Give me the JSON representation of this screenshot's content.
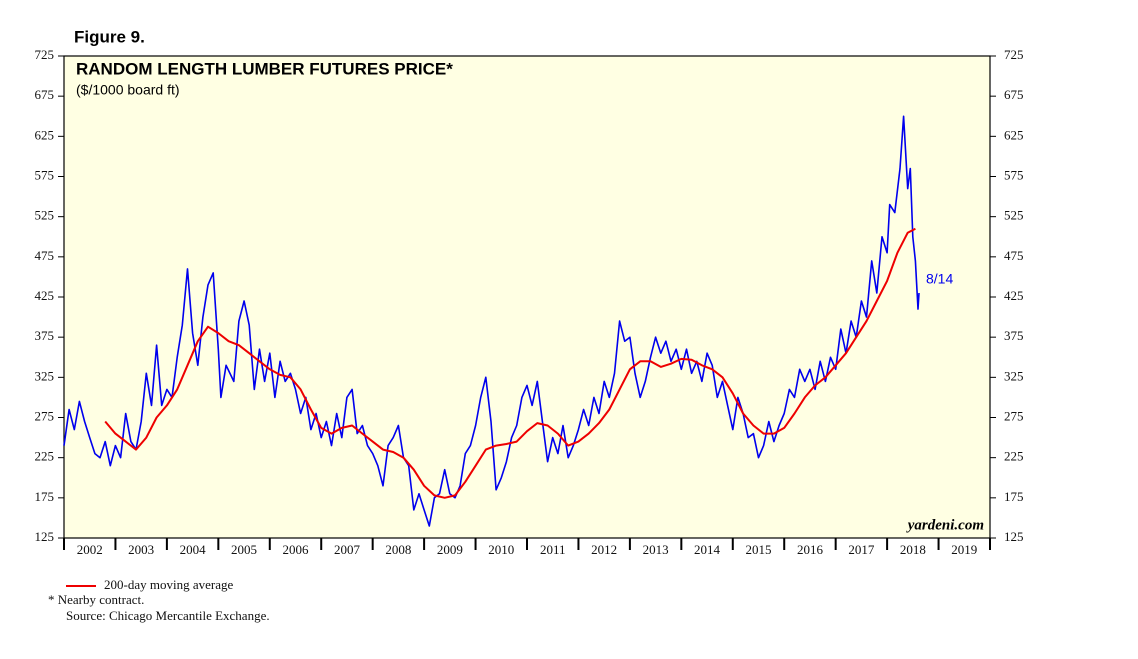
{
  "chart_data": {
    "type": "line",
    "figure_label": "Figure 9.",
    "title": "RANDOM LENGTH LUMBER FUTURES PRICE*",
    "subtitle": "($/1000 board ft)",
    "annotation": "8/14",
    "watermark": "yardeni.com",
    "footnote": "* Nearby contract.",
    "source": "Source: Chicago Mercantile Exchange.",
    "xlim": [
      2002,
      2020
    ],
    "xticks": [
      2002,
      2003,
      2004,
      2005,
      2006,
      2007,
      2008,
      2009,
      2010,
      2011,
      2012,
      2013,
      2014,
      2015,
      2016,
      2017,
      2018,
      2019,
      2020
    ],
    "x_labels": [
      "2002",
      "2003",
      "2004",
      "2005",
      "2006",
      "2007",
      "2008",
      "2009",
      "2010",
      "2011",
      "2012",
      "2013",
      "2014",
      "2015",
      "2016",
      "2017",
      "2018",
      "2019"
    ],
    "ylim": [
      125,
      725
    ],
    "yticks": [
      125,
      175,
      225,
      275,
      325,
      375,
      425,
      475,
      525,
      575,
      625,
      675,
      725
    ],
    "background": "#ffffe3",
    "series": [
      {
        "color": "#0000ee",
        "x": [
          2002.0,
          2002.1,
          2002.2,
          2002.3,
          2002.4,
          2002.5,
          2002.6,
          2002.7,
          2002.8,
          2002.9,
          2003.0,
          2003.1,
          2003.2,
          2003.3,
          2003.4,
          2003.5,
          2003.6,
          2003.7,
          2003.8,
          2003.9,
          2004.0,
          2004.1,
          2004.2,
          2004.3,
          2004.4,
          2004.5,
          2004.6,
          2004.7,
          2004.8,
          2004.9,
          2005.0,
          2005.05,
          2005.15,
          2005.3,
          2005.4,
          2005.5,
          2005.6,
          2005.7,
          2005.8,
          2005.9,
          2006.0,
          2006.1,
          2006.2,
          2006.3,
          2006.4,
          2006.5,
          2006.6,
          2006.7,
          2006.8,
          2006.9,
          2007.0,
          2007.1,
          2007.2,
          2007.3,
          2007.4,
          2007.5,
          2007.6,
          2007.7,
          2007.8,
          2007.9,
          2008.0,
          2008.1,
          2008.2,
          2008.3,
          2008.4,
          2008.5,
          2008.6,
          2008.7,
          2008.8,
          2008.9,
          2009.0,
          2009.1,
          2009.2,
          2009.3,
          2009.4,
          2009.5,
          2009.6,
          2009.7,
          2009.8,
          2009.9,
          2010.0,
          2010.1,
          2010.2,
          2010.3,
          2010.4,
          2010.5,
          2010.6,
          2010.7,
          2010.8,
          2010.9,
          2011.0,
          2011.1,
          2011.2,
          2011.3,
          2011.4,
          2011.5,
          2011.6,
          2011.7,
          2011.8,
          2011.9,
          2012.0,
          2012.1,
          2012.2,
          2012.3,
          2012.4,
          2012.5,
          2012.6,
          2012.7,
          2012.8,
          2012.9,
          2013.0,
          2013.1,
          2013.2,
          2013.3,
          2013.4,
          2013.5,
          2013.6,
          2013.7,
          2013.8,
          2013.9,
          2014.0,
          2014.1,
          2014.2,
          2014.3,
          2014.4,
          2014.5,
          2014.6,
          2014.7,
          2014.8,
          2014.9,
          2015.0,
          2015.1,
          2015.2,
          2015.3,
          2015.4,
          2015.5,
          2015.6,
          2015.7,
          2015.8,
          2015.9,
          2016.0,
          2016.1,
          2016.2,
          2016.3,
          2016.4,
          2016.5,
          2016.6,
          2016.7,
          2016.8,
          2016.9,
          2017.0,
          2017.1,
          2017.2,
          2017.3,
          2017.4,
          2017.5,
          2017.6,
          2017.7,
          2017.8,
          2017.9,
          2018.0,
          2018.05,
          2018.15,
          2018.25,
          2018.32,
          2018.4,
          2018.45,
          2018.5,
          2018.55,
          2018.6,
          2018.62
        ],
        "values": [
          240,
          285,
          260,
          295,
          270,
          250,
          230,
          225,
          245,
          215,
          240,
          225,
          280,
          245,
          235,
          270,
          330,
          290,
          365,
          290,
          310,
          300,
          350,
          390,
          460,
          380,
          340,
          400,
          440,
          455,
          360,
          300,
          340,
          320,
          395,
          420,
          390,
          310,
          360,
          320,
          355,
          300,
          345,
          320,
          330,
          310,
          280,
          300,
          260,
          280,
          250,
          270,
          240,
          280,
          250,
          300,
          310,
          255,
          265,
          240,
          230,
          215,
          190,
          240,
          250,
          265,
          225,
          215,
          160,
          180,
          160,
          140,
          175,
          180,
          210,
          180,
          175,
          190,
          230,
          240,
          265,
          300,
          325,
          270,
          185,
          200,
          220,
          250,
          265,
          300,
          315,
          290,
          320,
          270,
          220,
          250,
          230,
          265,
          225,
          240,
          260,
          285,
          265,
          300,
          280,
          320,
          300,
          330,
          395,
          370,
          375,
          330,
          300,
          320,
          350,
          375,
          355,
          370,
          345,
          360,
          335,
          360,
          330,
          345,
          320,
          355,
          340,
          300,
          320,
          290,
          260,
          300,
          280,
          250,
          255,
          225,
          240,
          270,
          245,
          265,
          280,
          310,
          300,
          335,
          320,
          335,
          310,
          345,
          320,
          350,
          335,
          385,
          355,
          395,
          375,
          420,
          400,
          470,
          430,
          500,
          480,
          540,
          530,
          585,
          650,
          560,
          585,
          500,
          470,
          410,
          430
        ]
      },
      {
        "name": "200-day moving average",
        "color": "#ee0000",
        "x": [
          2002.8,
          2003.0,
          2003.2,
          2003.4,
          2003.6,
          2003.8,
          2004.0,
          2004.2,
          2004.4,
          2004.6,
          2004.8,
          2005.0,
          2005.2,
          2005.4,
          2005.6,
          2005.8,
          2006.0,
          2006.2,
          2006.4,
          2006.6,
          2006.8,
          2007.0,
          2007.2,
          2007.4,
          2007.6,
          2007.8,
          2008.0,
          2008.2,
          2008.4,
          2008.6,
          2008.8,
          2009.0,
          2009.2,
          2009.4,
          2009.6,
          2009.8,
          2010.0,
          2010.2,
          2010.4,
          2010.6,
          2010.8,
          2011.0,
          2011.2,
          2011.4,
          2011.6,
          2011.8,
          2012.0,
          2012.2,
          2012.4,
          2012.6,
          2012.8,
          2013.0,
          2013.2,
          2013.4,
          2013.6,
          2013.8,
          2014.0,
          2014.2,
          2014.4,
          2014.6,
          2014.8,
          2015.0,
          2015.2,
          2015.4,
          2015.6,
          2015.8,
          2016.0,
          2016.2,
          2016.4,
          2016.6,
          2016.8,
          2017.0,
          2017.2,
          2017.4,
          2017.6,
          2017.8,
          2018.0,
          2018.2,
          2018.4,
          2018.55
        ],
        "values": [
          270,
          255,
          245,
          235,
          250,
          275,
          290,
          310,
          340,
          370,
          388,
          380,
          370,
          365,
          355,
          345,
          335,
          328,
          325,
          310,
          285,
          262,
          255,
          262,
          265,
          255,
          245,
          235,
          232,
          225,
          210,
          190,
          178,
          175,
          178,
          195,
          215,
          235,
          240,
          242,
          245,
          258,
          268,
          265,
          255,
          240,
          245,
          255,
          268,
          285,
          310,
          335,
          345,
          345,
          338,
          342,
          348,
          347,
          340,
          335,
          325,
          305,
          280,
          265,
          255,
          255,
          262,
          280,
          300,
          315,
          325,
          340,
          355,
          375,
          395,
          420,
          445,
          480,
          505,
          510
        ]
      }
    ]
  }
}
